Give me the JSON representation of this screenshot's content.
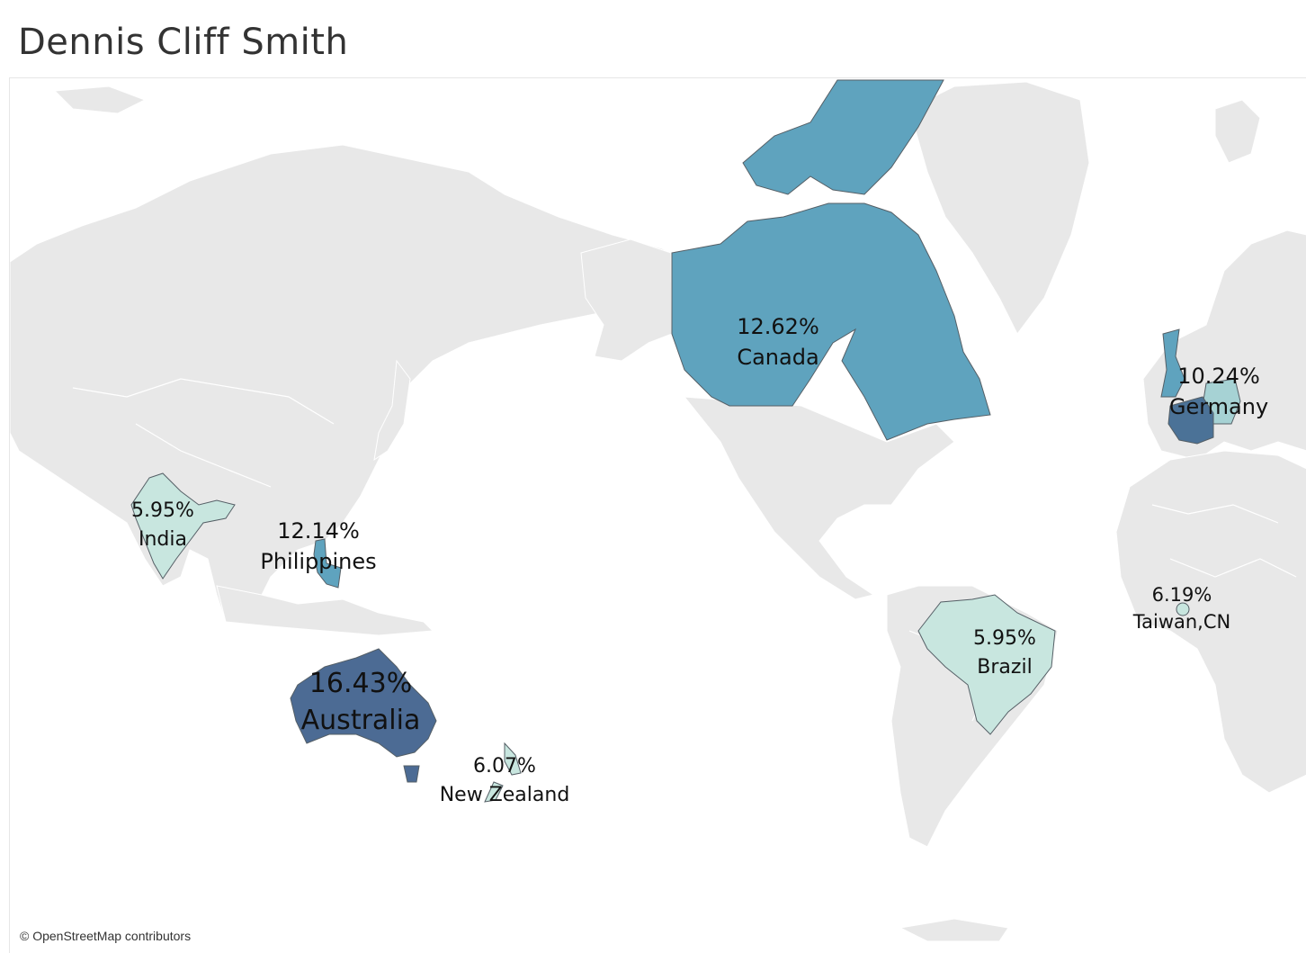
{
  "title": "Dennis Cliff Smith",
  "attribution": "© OpenStreetMap contributors",
  "colors": {
    "background": "#ffffff",
    "land": "#e8e8e8",
    "lowest": "#c8e6df",
    "low": "#a6d2d4",
    "mid": "#5fa3be",
    "high": "#4b7297",
    "highest": "#4c6b94"
  },
  "map_data": {
    "measure": "percent of total",
    "regions": [
      {
        "country": "Australia",
        "value": "16.43%",
        "color": "#4c6b94"
      },
      {
        "country": "Canada",
        "value": "12.62%",
        "color": "#5fa3be"
      },
      {
        "country": "Philippines",
        "value": "12.14%",
        "color": "#5fa3be"
      },
      {
        "country": "Germany",
        "value": "10.24%",
        "color": "#a6d2d4"
      },
      {
        "country": "Taiwan,CN",
        "value": "6.19%",
        "color": "#c8e6df"
      },
      {
        "country": "New Zealand",
        "value": "6.07%",
        "color": "#c8e6df"
      },
      {
        "country": "India",
        "value": "5.95%",
        "color": "#c8e6df"
      },
      {
        "country": "Brazil",
        "value": "5.95%",
        "color": "#c8e6df"
      }
    ]
  }
}
